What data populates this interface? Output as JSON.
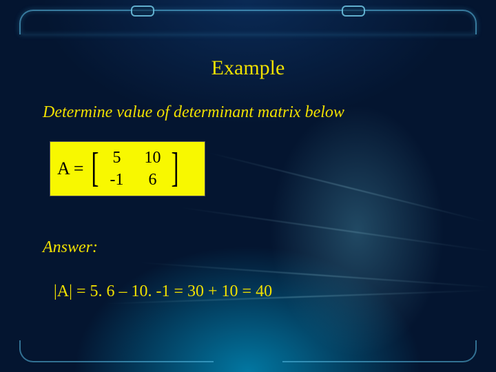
{
  "colors": {
    "accent": "#f0e000",
    "text_dark": "#000000",
    "matrix_bg": "#f8f800"
  },
  "title": "Example",
  "subtitle": "Determine value of  determinant matrix below",
  "matrix": {
    "label": "A =",
    "rows": [
      [
        "5",
        "10"
      ],
      [
        "-1",
        "6"
      ]
    ],
    "cell_color": "#000000",
    "bg": "#f8f800"
  },
  "answer": {
    "label": "Answer:",
    "line": "|A|  = 5. 6 – 10. -1 = 30 + 10 = 40"
  },
  "typography": {
    "title_fontsize_pt": 22,
    "body_fontsize_pt": 18,
    "font_family": "Georgia / Times serif"
  }
}
